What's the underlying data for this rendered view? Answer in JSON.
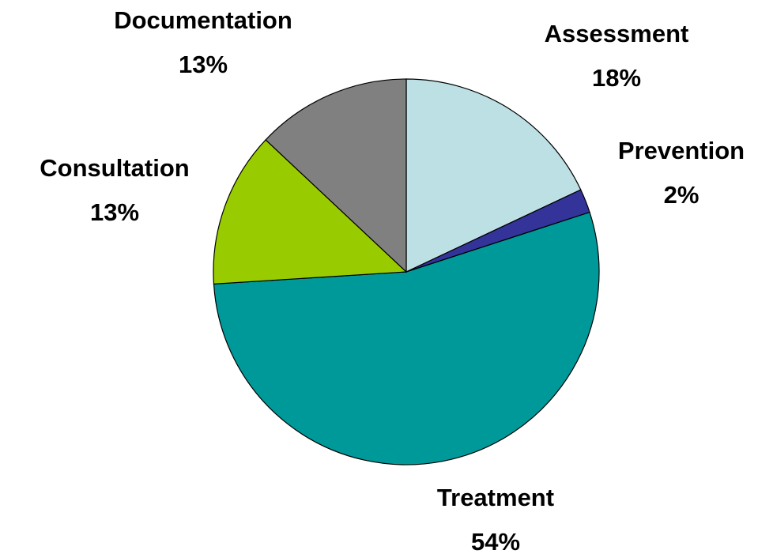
{
  "chart_data": {
    "type": "pie",
    "categories": [
      "Assessment",
      "Prevention",
      "Treatment",
      "Consultation",
      "Documentation"
    ],
    "values": [
      18,
      2,
      54,
      13,
      13
    ],
    "value_labels": [
      "18%",
      "2%",
      "54%",
      "13%",
      "13%"
    ],
    "colors": [
      "#bde0e5",
      "#333399",
      "#009999",
      "#99cc00",
      "#808080"
    ]
  }
}
